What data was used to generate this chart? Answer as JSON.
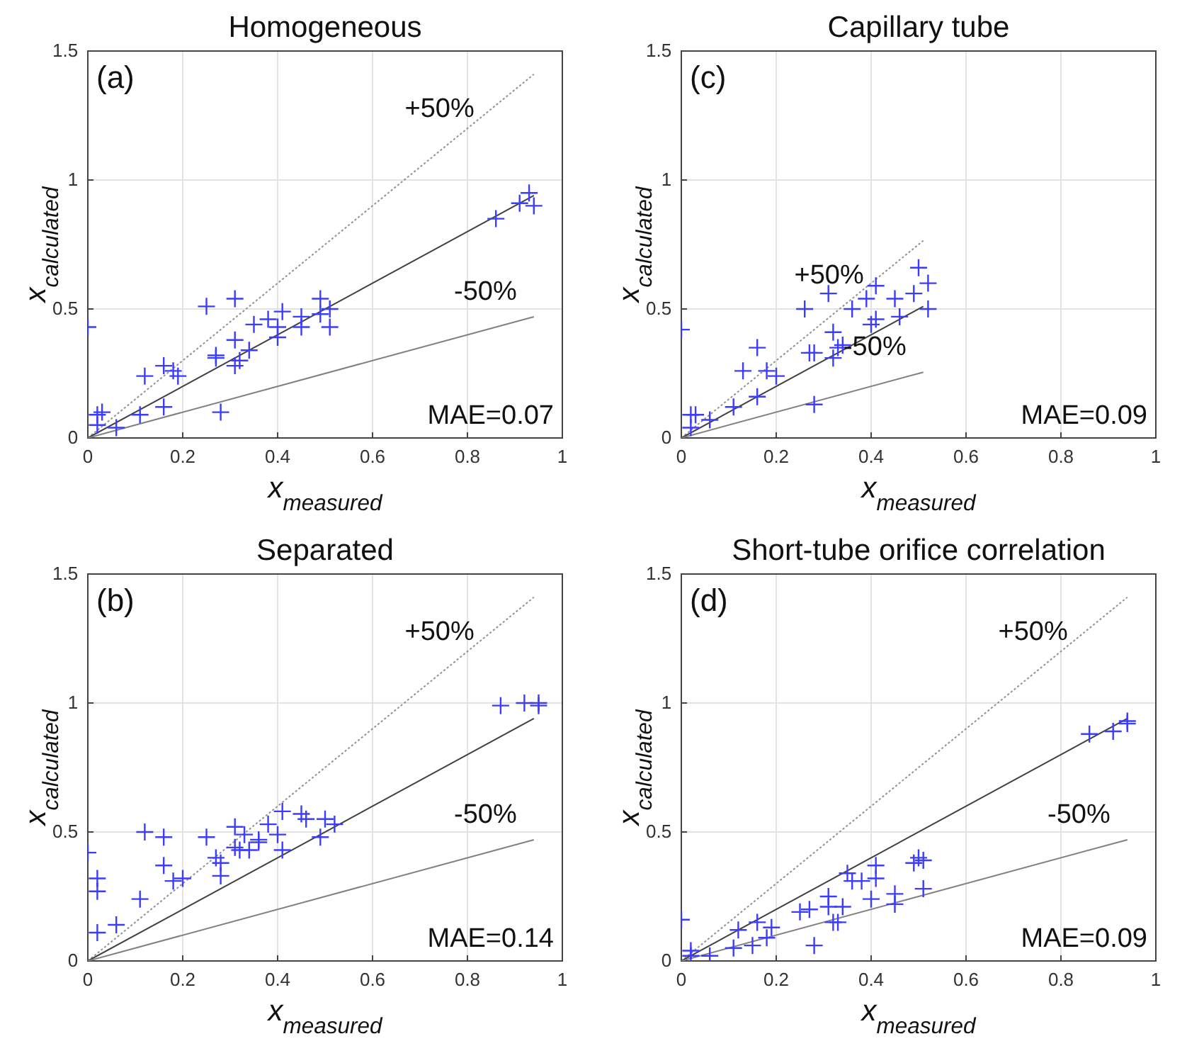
{
  "chart_data": [
    {
      "type": "scatter",
      "title": "Homogeneous",
      "xlabel": "x$_{measured}$",
      "ylabel": "x$_{calculated}$",
      "xlim": [
        0,
        1
      ],
      "ylim": [
        0,
        1.5
      ],
      "xticks": [
        0,
        0.2,
        0.4,
        0.6,
        0.8,
        1
      ],
      "yticks": [
        0,
        0.5,
        1,
        1.5
      ],
      "grid": true,
      "annotations": [
        "(a)",
        "+50%",
        "-50%",
        "MAE=0.07"
      ],
      "series": [
        {
          "type": "line",
          "color": "#909090",
          "line_style": "dotted",
          "x": [
            0,
            0.94
          ],
          "values": [
            0,
            1.41
          ]
        },
        {
          "type": "line",
          "color": "#404040",
          "line_style": "solid",
          "x": [
            0,
            0.94
          ],
          "values": [
            0,
            0.94
          ]
        },
        {
          "type": "line",
          "color": "#808080",
          "line_style": "solid",
          "x": [
            0,
            0.94
          ],
          "values": [
            0,
            0.47
          ]
        },
        {
          "type": "scatter",
          "marker": "cross",
          "color": "#3c3cff",
          "x": [
            0.0,
            0.02,
            0.03,
            0.02,
            0.06,
            0.12,
            0.11,
            0.16,
            0.16,
            0.18,
            0.19,
            0.25,
            0.27,
            0.27,
            0.28,
            0.31,
            0.31,
            0.31,
            0.32,
            0.34,
            0.35,
            0.38,
            0.4,
            0.4,
            0.41,
            0.45,
            0.45,
            0.49,
            0.49,
            0.51,
            0.51,
            0.86,
            0.91,
            0.93,
            0.94
          ],
          "values": [
            0.43,
            0.09,
            0.1,
            0.05,
            0.04,
            0.24,
            0.09,
            0.12,
            0.28,
            0.26,
            0.24,
            0.51,
            0.32,
            0.31,
            0.1,
            0.54,
            0.38,
            0.28,
            0.3,
            0.34,
            0.44,
            0.46,
            0.39,
            0.43,
            0.49,
            0.47,
            0.43,
            0.48,
            0.54,
            0.43,
            0.5,
            0.85,
            0.91,
            0.95,
            0.9
          ]
        }
      ]
    },
    {
      "type": "scatter",
      "title": "Capillary tube",
      "xlabel": "x$_{measured}$",
      "ylabel": "x$_{calculated}$",
      "xlim": [
        0,
        1
      ],
      "ylim": [
        0,
        1.5
      ],
      "xticks": [
        0,
        0.2,
        0.4,
        0.6,
        0.8,
        1
      ],
      "yticks": [
        0,
        0.5,
        1,
        1.5
      ],
      "grid": true,
      "annotations": [
        "(c)",
        "+50%",
        "-50%",
        "MAE=0.09"
      ],
      "series": [
        {
          "type": "line",
          "color": "#909090",
          "line_style": "dotted",
          "x": [
            0,
            0.51
          ],
          "values": [
            0,
            0.765
          ]
        },
        {
          "type": "line",
          "color": "#404040",
          "line_style": "solid",
          "x": [
            0,
            0.51
          ],
          "values": [
            0,
            0.51
          ]
        },
        {
          "type": "line",
          "color": "#808080",
          "line_style": "solid",
          "x": [
            0,
            0.51
          ],
          "values": [
            0,
            0.255
          ]
        },
        {
          "type": "scatter",
          "marker": "cross",
          "color": "#3c3cff",
          "x": [
            0.0,
            0.02,
            0.03,
            0.02,
            0.06,
            0.11,
            0.13,
            0.16,
            0.16,
            0.18,
            0.2,
            0.26,
            0.27,
            0.28,
            0.28,
            0.31,
            0.32,
            0.32,
            0.33,
            0.34,
            0.36,
            0.39,
            0.4,
            0.41,
            0.41,
            0.45,
            0.46,
            0.49,
            0.5,
            0.52,
            0.52
          ],
          "values": [
            0.42,
            0.09,
            0.09,
            0.04,
            0.07,
            0.12,
            0.26,
            0.16,
            0.35,
            0.26,
            0.24,
            0.5,
            0.33,
            0.33,
            0.13,
            0.56,
            0.41,
            0.31,
            0.35,
            0.36,
            0.5,
            0.54,
            0.44,
            0.46,
            0.59,
            0.54,
            0.47,
            0.56,
            0.66,
            0.6,
            0.5
          ]
        }
      ]
    },
    {
      "type": "scatter",
      "title": "Separated",
      "xlabel": "x$_{measured}$",
      "ylabel": "x$_{calculated}$",
      "xlim": [
        0,
        1
      ],
      "ylim": [
        0,
        1.5
      ],
      "xticks": [
        0,
        0.2,
        0.4,
        0.6,
        0.8,
        1
      ],
      "yticks": [
        0,
        0.5,
        1,
        1.5
      ],
      "grid": true,
      "annotations": [
        "(b)",
        "+50%",
        "-50%",
        "MAE=0.14"
      ],
      "series": [
        {
          "type": "line",
          "color": "#909090",
          "line_style": "dotted",
          "x": [
            0,
            0.94
          ],
          "values": [
            0,
            1.41
          ]
        },
        {
          "type": "line",
          "color": "#404040",
          "line_style": "solid",
          "x": [
            0,
            0.94
          ],
          "values": [
            0,
            0.94
          ]
        },
        {
          "type": "line",
          "color": "#808080",
          "line_style": "solid",
          "x": [
            0,
            0.94
          ],
          "values": [
            0,
            0.47
          ]
        },
        {
          "type": "scatter",
          "marker": "cross",
          "color": "#3c3cff",
          "x": [
            0.0,
            0.02,
            0.02,
            0.02,
            0.06,
            0.11,
            0.12,
            0.16,
            0.16,
            0.18,
            0.2,
            0.25,
            0.27,
            0.28,
            0.28,
            0.31,
            0.31,
            0.32,
            0.33,
            0.34,
            0.36,
            0.36,
            0.38,
            0.4,
            0.41,
            0.41,
            0.45,
            0.46,
            0.49,
            0.5,
            0.52,
            0.87,
            0.92,
            0.95,
            0.95
          ],
          "values": [
            0.42,
            0.32,
            0.27,
            0.11,
            0.14,
            0.24,
            0.5,
            0.37,
            0.48,
            0.31,
            0.32,
            0.48,
            0.4,
            0.38,
            0.33,
            0.52,
            0.44,
            0.43,
            0.49,
            0.43,
            0.46,
            0.47,
            0.53,
            0.49,
            0.43,
            0.58,
            0.57,
            0.55,
            0.48,
            0.55,
            0.53,
            0.99,
            1.0,
            1.0,
            0.99
          ]
        }
      ]
    },
    {
      "type": "scatter",
      "title": "Short-tube orifice correlation",
      "xlabel": "x$_{measured}$",
      "ylabel": "x$_{calculated}$",
      "xlim": [
        0,
        1
      ],
      "ylim": [
        0,
        1.5
      ],
      "xticks": [
        0,
        0.2,
        0.4,
        0.6,
        0.8,
        1
      ],
      "yticks": [
        0,
        0.5,
        1,
        1.5
      ],
      "grid": true,
      "annotations": [
        "(d)",
        "+50%",
        "-50%",
        "MAE=0.09"
      ],
      "series": [
        {
          "type": "line",
          "color": "#909090",
          "line_style": "dotted",
          "x": [
            0,
            0.94
          ],
          "values": [
            0,
            1.41
          ]
        },
        {
          "type": "line",
          "color": "#404040",
          "line_style": "solid",
          "x": [
            0,
            0.94
          ],
          "values": [
            0,
            0.94
          ]
        },
        {
          "type": "line",
          "color": "#808080",
          "line_style": "solid",
          "x": [
            0,
            0.94
          ],
          "values": [
            0,
            0.47
          ]
        },
        {
          "type": "scatter",
          "marker": "cross",
          "color": "#3c3cff",
          "x": [
            0.0,
            0.02,
            0.02,
            0.06,
            0.11,
            0.12,
            0.15,
            0.16,
            0.18,
            0.19,
            0.25,
            0.27,
            0.28,
            0.31,
            0.31,
            0.32,
            0.33,
            0.34,
            0.35,
            0.36,
            0.38,
            0.4,
            0.41,
            0.41,
            0.45,
            0.45,
            0.49,
            0.5,
            0.51,
            0.51,
            0.86,
            0.91,
            0.94,
            0.94
          ],
          "values": [
            0.16,
            0.04,
            0.02,
            0.02,
            0.05,
            0.12,
            0.06,
            0.15,
            0.09,
            0.13,
            0.19,
            0.2,
            0.06,
            0.25,
            0.21,
            0.15,
            0.15,
            0.21,
            0.34,
            0.31,
            0.31,
            0.24,
            0.37,
            0.32,
            0.22,
            0.26,
            0.38,
            0.4,
            0.39,
            0.28,
            0.88,
            0.89,
            0.93,
            0.92
          ]
        }
      ]
    }
  ]
}
